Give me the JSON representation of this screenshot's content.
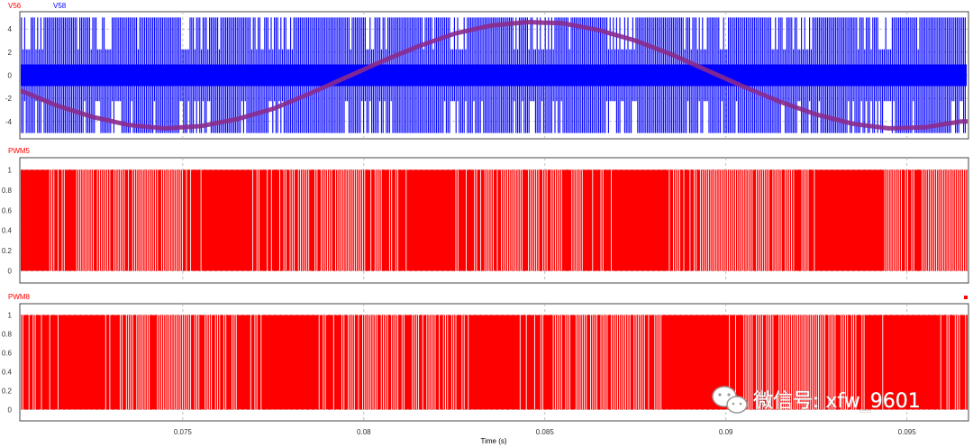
{
  "watermark": "微信号: xfw_9601",
  "colors": {
    "red": "#ff0000",
    "blue": "#0000ff",
    "purple": "#8a2a8c"
  },
  "chart_data": [
    {
      "type": "line",
      "series": [
        {
          "name": "V56",
          "color": "#ff0000",
          "x": [
            0.0705,
            0.0715,
            0.0725,
            0.0735,
            0.0745,
            0.0755,
            0.0765,
            0.0775,
            0.0785,
            0.0795,
            0.0805,
            0.0815,
            0.0825,
            0.0835,
            0.0845,
            0.0855,
            0.0865,
            0.0875,
            0.0885,
            0.0895,
            0.0905,
            0.0915,
            0.0925,
            0.0935,
            0.0945,
            0.0955,
            0.0965
          ],
          "values": [
            -1.3,
            -2.6,
            -3.6,
            -4.3,
            -4.6,
            -4.4,
            -3.8,
            -2.9,
            -1.6,
            -0.2,
            1.2,
            2.5,
            3.6,
            4.3,
            4.6,
            4.5,
            3.9,
            3.0,
            1.8,
            0.4,
            -1.0,
            -2.3,
            -3.4,
            -4.2,
            -4.6,
            -4.5,
            -4.0
          ]
        },
        {
          "name": "V58",
          "color": "#0000ff",
          "x": [
            0.0705,
            0.0965
          ],
          "values_min": -5,
          "values_max": 5,
          "x_cutoff": 0.09665
        }
      ],
      "ylim": [
        -5.5,
        5.5
      ],
      "yticks": [
        4,
        2,
        0,
        -2,
        -4
      ]
    },
    {
      "type": "line",
      "series": [
        {
          "name": "PWM5",
          "color": "#ff0000",
          "x": [
            0.0705,
            0.0965
          ],
          "levels": [
            0,
            1
          ]
        }
      ],
      "ylim": [
        -0.12,
        1.12
      ],
      "yticks": [
        1,
        0.8,
        0.6,
        0.4,
        0.2,
        0
      ]
    },
    {
      "type": "line",
      "series": [
        {
          "name": "PWM8",
          "color": "#ff0000",
          "x": [
            0.0705,
            0.0965
          ],
          "levels": [
            0,
            1
          ]
        }
      ],
      "ylim": [
        -0.12,
        1.12
      ],
      "yticks": [
        1,
        0.8,
        0.6,
        0.4,
        0.2,
        0
      ]
    }
  ],
  "x_axis": {
    "label": "Time (s)",
    "xlim": [
      0.0705,
      0.0967
    ],
    "ticks": [
      0.075,
      0.08,
      0.085,
      0.09,
      0.095
    ],
    "tick_labels": [
      "0.075",
      "0.08",
      "0.085",
      "0.09",
      "0.095"
    ]
  }
}
